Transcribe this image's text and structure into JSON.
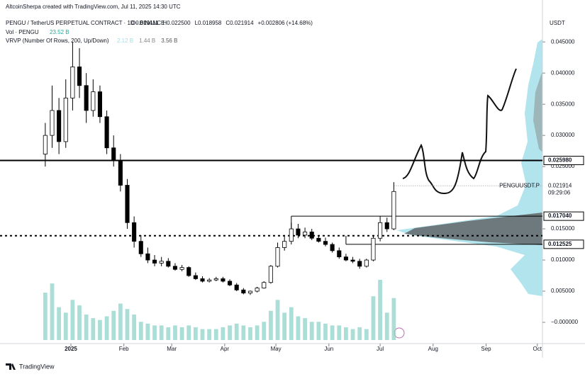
{
  "chart_data": {
    "type": "candlestick",
    "attribution": "AltcoinSherpa created with TradingView.com, Jul 11, 2025 14:30 UTC",
    "title": "PENGU / TetherUS PERPETUAL CONTRACT · 1D · BINANCE",
    "ohlc_labels": [
      "O0.019111",
      "H0.022500",
      "L0.018958",
      "C0.021914",
      "+0.002806 (+14.68%)"
    ],
    "volume_label": "Vol · PENGU",
    "volume_value_label": "23.52 B",
    "vrvp_label": "VRVP (Number Of Rows, 200, Up/Down)",
    "vrvp_values": [
      "2.12 B",
      "1.44 B",
      "3.56 B"
    ],
    "currency": "USDT",
    "brand": "TradingView",
    "x": [
      -15,
      -11,
      -7,
      -3,
      1,
      5,
      9,
      13,
      17,
      21,
      25,
      29,
      33,
      37,
      41,
      45,
      49,
      53,
      57,
      61,
      65,
      69,
      73,
      77,
      81,
      85,
      89,
      93,
      97,
      101,
      105,
      109,
      113,
      117,
      121,
      125,
      129,
      133,
      137,
      141,
      145,
      149,
      153,
      157,
      161,
      165,
      169,
      173,
      177,
      181,
      185,
      189
    ],
    "open": [
      0.027,
      0.03,
      0.034,
      0.029,
      0.036,
      0.041,
      0.038,
      0.034,
      0.037,
      0.033,
      0.028,
      0.026,
      0.022,
      0.016,
      0.013,
      0.011,
      0.01,
      0.0095,
      0.0098,
      0.009,
      0.0085,
      0.0088,
      0.0075,
      0.007,
      0.0066,
      0.0068,
      0.007,
      0.0066,
      0.006,
      0.0052,
      0.0047,
      0.005,
      0.0055,
      0.0064,
      0.009,
      0.012,
      0.013,
      0.015,
      0.014,
      0.0145,
      0.0135,
      0.013,
      0.0125,
      0.0115,
      0.0105,
      0.01,
      0.0098,
      0.009,
      0.01,
      0.0135,
      0.016,
      0.015
    ],
    "high": [
      0.032,
      0.038,
      0.036,
      0.039,
      0.045,
      0.044,
      0.04,
      0.039,
      0.038,
      0.034,
      0.03,
      0.027,
      0.023,
      0.017,
      0.014,
      0.012,
      0.0108,
      0.0105,
      0.0103,
      0.0095,
      0.0092,
      0.009,
      0.008,
      0.0074,
      0.0071,
      0.0073,
      0.0073,
      0.0069,
      0.0063,
      0.0055,
      0.0051,
      0.0057,
      0.0066,
      0.0092,
      0.0128,
      0.014,
      0.016,
      0.0158,
      0.0152,
      0.015,
      0.014,
      0.0136,
      0.0128,
      0.012,
      0.011,
      0.0105,
      0.0102,
      0.0102,
      0.014,
      0.017,
      0.0168,
      0.0225
    ],
    "low": [
      0.025,
      0.028,
      0.027,
      0.028,
      0.034,
      0.036,
      0.032,
      0.033,
      0.032,
      0.027,
      0.025,
      0.021,
      0.015,
      0.012,
      0.0105,
      0.0095,
      0.009,
      0.009,
      0.0088,
      0.0083,
      0.0082,
      0.0073,
      0.0068,
      0.0064,
      0.0064,
      0.0066,
      0.0064,
      0.0058,
      0.005,
      0.0045,
      0.0044,
      0.0048,
      0.0054,
      0.0062,
      0.0088,
      0.0115,
      0.0125,
      0.0135,
      0.0135,
      0.0132,
      0.0128,
      0.0122,
      0.0112,
      0.0102,
      0.0098,
      0.0095,
      0.0086,
      0.0088,
      0.0098,
      0.013,
      0.0145,
      0.0148
    ],
    "close": [
      0.03,
      0.034,
      0.029,
      0.036,
      0.041,
      0.038,
      0.034,
      0.037,
      0.033,
      0.028,
      0.026,
      0.022,
      0.016,
      0.013,
      0.011,
      0.01,
      0.0095,
      0.0098,
      0.009,
      0.0085,
      0.0088,
      0.0075,
      0.007,
      0.0066,
      0.0068,
      0.007,
      0.0066,
      0.006,
      0.0052,
      0.0047,
      0.005,
      0.0055,
      0.0064,
      0.009,
      0.012,
      0.013,
      0.015,
      0.014,
      0.0145,
      0.0135,
      0.013,
      0.0125,
      0.0115,
      0.0105,
      0.01,
      0.0098,
      0.009,
      0.01,
      0.0135,
      0.016,
      0.015,
      0.021
    ],
    "volume": [
      2.6,
      3.1,
      1.8,
      1.5,
      2.2,
      1.9,
      1.4,
      1.2,
      1.1,
      1.3,
      1.6,
      2.0,
      1.7,
      1.4,
      1.0,
      0.9,
      0.8,
      0.8,
      0.7,
      0.8,
      0.7,
      0.8,
      0.7,
      0.6,
      0.6,
      0.6,
      0.7,
      0.8,
      0.9,
      0.8,
      0.7,
      0.8,
      1.0,
      1.6,
      2.2,
      1.5,
      1.8,
      1.3,
      1.2,
      1.0,
      1.0,
      0.9,
      0.8,
      0.8,
      0.7,
      0.6,
      0.7,
      0.6,
      2.4,
      3.3,
      1.5,
      2.3
    ],
    "xlim": [
      -41.5,
      276
    ],
    "xticks": [
      {
        "value": 0,
        "label": "2025"
      },
      {
        "value": 31,
        "label": "Feb"
      },
      {
        "value": 59,
        "label": "Mar"
      },
      {
        "value": 90,
        "label": "Apr"
      },
      {
        "value": 120,
        "label": "May"
      },
      {
        "value": 151,
        "label": "Jun"
      },
      {
        "value": 181,
        "label": "Jul"
      },
      {
        "value": 212,
        "label": "Aug"
      },
      {
        "value": 243,
        "label": "Sep"
      },
      {
        "value": 273,
        "label": "Oct"
      }
    ],
    "ylim": [
      -0.00284,
      0.049
    ],
    "yticks": [
      {
        "value": 0.045,
        "label": "0.045000"
      },
      {
        "value": 0.04,
        "label": "0.040000"
      },
      {
        "value": 0.035,
        "label": "0.035000"
      },
      {
        "value": 0.03,
        "label": "0.030000"
      },
      {
        "value": 0.025,
        "label": "0.025000"
      },
      {
        "value": 0.015,
        "label": "0.015000"
      },
      {
        "value": 0.01,
        "label": "0.010000"
      },
      {
        "value": 0.005,
        "label": "0.005000"
      },
      {
        "value": 0,
        "label": "−0.000000"
      }
    ],
    "levels": [
      {
        "value": 0.02598,
        "label": "0.025980",
        "start": -41.5
      },
      {
        "value": 0.01704,
        "label": "0.017040",
        "start": 129
      },
      {
        "value": 0.012525,
        "label": "0.012525",
        "start": 161
      }
    ],
    "dotted_level": 0.0139,
    "price": {
      "value": 0.021914,
      "label": "0.021914",
      "symbol": "PENGUUSDT.P",
      "countdown": "09:29:06"
    },
    "up_color": "#ffffff",
    "down_color": "#000000",
    "volume_color": "#8fd3c9"
  }
}
